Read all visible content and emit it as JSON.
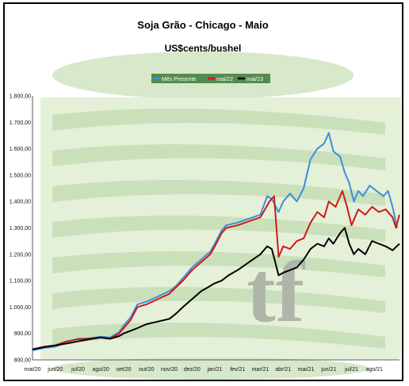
{
  "chart_data": {
    "type": "line",
    "title": "Soja Grão - Chicago - Maio",
    "subtitle": "US$cents/bushel",
    "legend_position": "top-center",
    "ylim": [
      800,
      1800
    ],
    "yticks": [
      "800,00",
      "900,00",
      "1.000,00",
      "1.100,00",
      "1.200,00",
      "1.300,00",
      "1.400,00",
      "1.500,00",
      "1.600,00",
      "1.700,00",
      "1.800,00"
    ],
    "xticks": [
      "mai/20",
      "jun/20",
      "jul/20",
      "ago/20",
      "set/20",
      "out/20",
      "nov/20",
      "dez/20",
      "jan/21",
      "fev/21",
      "mar/21",
      "abr/21",
      "mai/21",
      "jun/21",
      "jul/21",
      "ago/21"
    ],
    "x_range_months": [
      0,
      16.0
    ],
    "series": [
      {
        "name": "Mês Presente",
        "color": "#3b8fd9",
        "points": [
          [
            0,
            835
          ],
          [
            0.5,
            845
          ],
          [
            1,
            850
          ],
          [
            1.5,
            868
          ],
          [
            2,
            880
          ],
          [
            2.5,
            882
          ],
          [
            3,
            888
          ],
          [
            3.4,
            885
          ],
          [
            3.8,
            905
          ],
          [
            4,
            930
          ],
          [
            4.3,
            960
          ],
          [
            4.6,
            1010
          ],
          [
            5,
            1020
          ],
          [
            5.5,
            1040
          ],
          [
            6,
            1060
          ],
          [
            6.3,
            1080
          ],
          [
            6.6,
            1110
          ],
          [
            7,
            1150
          ],
          [
            7.4,
            1180
          ],
          [
            7.8,
            1210
          ],
          [
            8,
            1240
          ],
          [
            8.3,
            1290
          ],
          [
            8.5,
            1310
          ],
          [
            9,
            1320
          ],
          [
            9.5,
            1335
          ],
          [
            10,
            1350
          ],
          [
            10.3,
            1420
          ],
          [
            10.5,
            1410
          ],
          [
            10.8,
            1360
          ],
          [
            11,
            1400
          ],
          [
            11.3,
            1430
          ],
          [
            11.6,
            1400
          ],
          [
            11.9,
            1450
          ],
          [
            12.2,
            1560
          ],
          [
            12.5,
            1600
          ],
          [
            12.8,
            1620
          ],
          [
            13,
            1660
          ],
          [
            13.2,
            1590
          ],
          [
            13.5,
            1570
          ],
          [
            13.7,
            1510
          ],
          [
            13.9,
            1470
          ],
          [
            14.1,
            1400
          ],
          [
            14.3,
            1440
          ],
          [
            14.5,
            1420
          ],
          [
            14.8,
            1460
          ],
          [
            15.1,
            1440
          ],
          [
            15.4,
            1420
          ],
          [
            15.6,
            1440
          ],
          [
            15.8,
            1380
          ],
          [
            16,
            1300
          ]
        ]
      },
      {
        "name": "mai/22",
        "color": "#d01818",
        "points": [
          [
            0,
            840
          ],
          [
            0.5,
            850
          ],
          [
            1,
            855
          ],
          [
            1.5,
            870
          ],
          [
            2,
            878
          ],
          [
            2.5,
            880
          ],
          [
            3,
            885
          ],
          [
            3.4,
            880
          ],
          [
            3.8,
            900
          ],
          [
            4,
            920
          ],
          [
            4.3,
            950
          ],
          [
            4.6,
            1000
          ],
          [
            5,
            1010
          ],
          [
            5.5,
            1030
          ],
          [
            6,
            1050
          ],
          [
            6.3,
            1075
          ],
          [
            6.6,
            1100
          ],
          [
            7,
            1140
          ],
          [
            7.4,
            1170
          ],
          [
            7.8,
            1200
          ],
          [
            8,
            1230
          ],
          [
            8.3,
            1280
          ],
          [
            8.5,
            1300
          ],
          [
            9,
            1310
          ],
          [
            9.5,
            1325
          ],
          [
            10,
            1340
          ],
          [
            10.4,
            1400
          ],
          [
            10.6,
            1420
          ],
          [
            10.8,
            1190
          ],
          [
            11,
            1230
          ],
          [
            11.3,
            1220
          ],
          [
            11.6,
            1250
          ],
          [
            11.9,
            1260
          ],
          [
            12.2,
            1320
          ],
          [
            12.5,
            1360
          ],
          [
            12.8,
            1340
          ],
          [
            13,
            1400
          ],
          [
            13.3,
            1380
          ],
          [
            13.6,
            1440
          ],
          [
            13.8,
            1380
          ],
          [
            14,
            1310
          ],
          [
            14.3,
            1370
          ],
          [
            14.6,
            1350
          ],
          [
            14.9,
            1380
          ],
          [
            15.2,
            1360
          ],
          [
            15.5,
            1370
          ],
          [
            15.8,
            1340
          ],
          [
            15.95,
            1300
          ],
          [
            16.1,
            1350
          ]
        ]
      },
      {
        "name": "mai/23",
        "color": "#000000",
        "points": [
          [
            0,
            840
          ],
          [
            0.5,
            848
          ],
          [
            1,
            855
          ],
          [
            1.5,
            862
          ],
          [
            2,
            870
          ],
          [
            2.5,
            878
          ],
          [
            3,
            885
          ],
          [
            3.4,
            880
          ],
          [
            3.8,
            890
          ],
          [
            4,
            900
          ],
          [
            4.3,
            910
          ],
          [
            4.6,
            920
          ],
          [
            5,
            935
          ],
          [
            5.5,
            945
          ],
          [
            6,
            955
          ],
          [
            6.3,
            975
          ],
          [
            6.6,
            1000
          ],
          [
            7,
            1030
          ],
          [
            7.4,
            1060
          ],
          [
            7.8,
            1080
          ],
          [
            8,
            1090
          ],
          [
            8.3,
            1100
          ],
          [
            8.6,
            1120
          ],
          [
            9,
            1140
          ],
          [
            9.5,
            1170
          ],
          [
            10,
            1200
          ],
          [
            10.3,
            1230
          ],
          [
            10.5,
            1220
          ],
          [
            10.8,
            1120
          ],
          [
            11,
            1130
          ],
          [
            11.3,
            1140
          ],
          [
            11.6,
            1150
          ],
          [
            11.9,
            1180
          ],
          [
            12.2,
            1220
          ],
          [
            12.5,
            1240
          ],
          [
            12.8,
            1230
          ],
          [
            13,
            1260
          ],
          [
            13.2,
            1240
          ],
          [
            13.5,
            1280
          ],
          [
            13.7,
            1300
          ],
          [
            13.9,
            1240
          ],
          [
            14.1,
            1200
          ],
          [
            14.3,
            1220
          ],
          [
            14.6,
            1200
          ],
          [
            14.9,
            1250
          ],
          [
            15.2,
            1240
          ],
          [
            15.5,
            1230
          ],
          [
            15.8,
            1215
          ],
          [
            16.1,
            1240
          ]
        ]
      }
    ]
  },
  "watermark": {
    "text": "tf"
  }
}
